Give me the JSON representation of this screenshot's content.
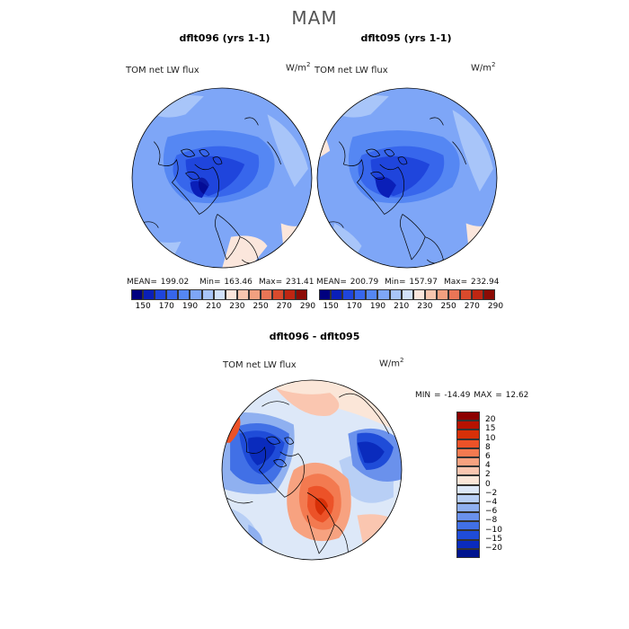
{
  "figure": {
    "season": "MAM",
    "panels": [
      {
        "title": "dflt096 (yrs 1-1)",
        "variable": "TOM net LW flux",
        "units_base": "W/m",
        "units_exp": "2",
        "mean_label": "MEAN= 199.02",
        "min_label": "Min= 163.46",
        "max_label": "Max= 231.41"
      },
      {
        "title": "dflt095 (yrs 1-1)",
        "variable": "TOM net LW flux",
        "units_base": "W/m",
        "units_exp": "2",
        "mean_label": "MEAN= 200.79",
        "min_label": "Min= 157.97",
        "max_label": "Max= 232.94"
      },
      {
        "title": "dflt096 - dflt095",
        "variable": "TOM net LW flux",
        "units_base": "W/m",
        "units_exp": "2",
        "minmax_label": "MIN = -14.49 MAX =  12.62"
      }
    ]
  },
  "colorbars": {
    "absolute": {
      "colors": [
        "#00007f",
        "#0a1fb8",
        "#1f45dc",
        "#3766ec",
        "#5587f3",
        "#7ea6f7",
        "#a8c5f9",
        "#d2e2fb",
        "#fbe6dc",
        "#f7c6af",
        "#f2a080",
        "#e97556",
        "#d94a2c",
        "#bf2612",
        "#8c0b05"
      ],
      "ticks": [
        "150",
        "170",
        "190",
        "210",
        "230",
        "250",
        "270",
        "290"
      ]
    },
    "difference": {
      "colors": [
        "#8c0000",
        "#b71200",
        "#d73008",
        "#ec5228",
        "#f37a50",
        "#f7a280",
        "#fac6b0",
        "#fbe6d8",
        "#dde8f8",
        "#b8cff5",
        "#8fb0f0",
        "#6a91ec",
        "#4170e6",
        "#1f4cd8",
        "#0a2bbd",
        "#00148f"
      ],
      "ticks": [
        "20",
        "15",
        "10",
        "8",
        "6",
        "4",
        "2",
        "0",
        "−2",
        "−4",
        "−6",
        "−8",
        "−10",
        "−15",
        "−20"
      ]
    }
  },
  "chart_data": [
    {
      "type": "map",
      "projection": "north polar stereographic",
      "title": "dflt096 (yrs 1-1)",
      "field": "TOM net LW flux",
      "units": "W/m^2",
      "mean": 199.02,
      "min": 163.46,
      "max": 231.41,
      "levels": [
        150,
        170,
        190,
        210,
        230,
        250,
        270,
        290
      ]
    },
    {
      "type": "map",
      "projection": "north polar stereographic",
      "title": "dflt095 (yrs 1-1)",
      "field": "TOM net LW flux",
      "units": "W/m^2",
      "mean": 200.79,
      "min": 157.97,
      "max": 232.94,
      "levels": [
        150,
        170,
        190,
        210,
        230,
        250,
        270,
        290
      ]
    },
    {
      "type": "map",
      "projection": "north polar stereographic",
      "title": "dflt096 - dflt095",
      "field": "TOM net LW flux",
      "units": "W/m^2",
      "min": -14.49,
      "max": 12.62,
      "levels": [
        -20,
        -15,
        -10,
        -8,
        -6,
        -4,
        -2,
        0,
        2,
        4,
        6,
        8,
        10,
        15,
        20
      ]
    }
  ]
}
